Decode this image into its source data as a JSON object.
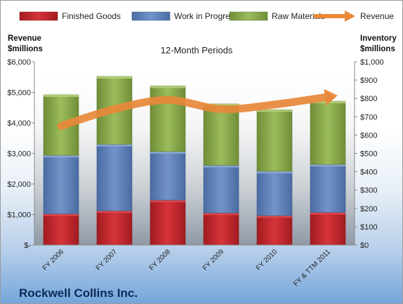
{
  "company": "Rockwell Collins Inc.",
  "chart_data": {
    "type": "bar",
    "stacked": true,
    "subtitle": "12-Month Periods",
    "categories": [
      "FY 2006",
      "FY 2007",
      "FY 2008",
      "FY 2009",
      "FY 2010",
      "FY & TTM 2011"
    ],
    "series": [
      {
        "name": "Finished Goods",
        "axis": "right",
        "color": "#c0262d",
        "values": [
          170,
          187,
          245,
          175,
          160,
          178
        ]
      },
      {
        "name": "Work in Progress",
        "axis": "right",
        "color": "#5b7fb7",
        "values": [
          320,
          363,
          265,
          260,
          243,
          262
        ]
      },
      {
        "name": "Raw Materials",
        "axis": "right",
        "color": "#86a74a",
        "values": [
          330,
          370,
          358,
          335,
          335,
          345
        ]
      },
      {
        "name": "Revenue",
        "axis": "left",
        "type": "line",
        "color": "#e8883a",
        "values": [
          3900,
          4450,
          4750,
          4450,
          4600,
          4850
        ]
      }
    ],
    "left_axis": {
      "label_line1": "Revenue",
      "label_line2": "$millions",
      "min": 0,
      "max": 6000,
      "ticks": [
        "$-",
        "$1,000",
        "$2,000",
        "$3,000",
        "$4,000",
        "$5,000",
        "$6,000"
      ]
    },
    "right_axis": {
      "label_line1": "Inventory",
      "label_line2": "$millions",
      "min": 0,
      "max": 1000,
      "ticks": [
        "$0",
        "$100",
        "$200",
        "$300",
        "$400",
        "$500",
        "$600",
        "$700",
        "$800",
        "$900",
        "$1,000"
      ]
    },
    "grid": false,
    "legend_position": "top"
  }
}
